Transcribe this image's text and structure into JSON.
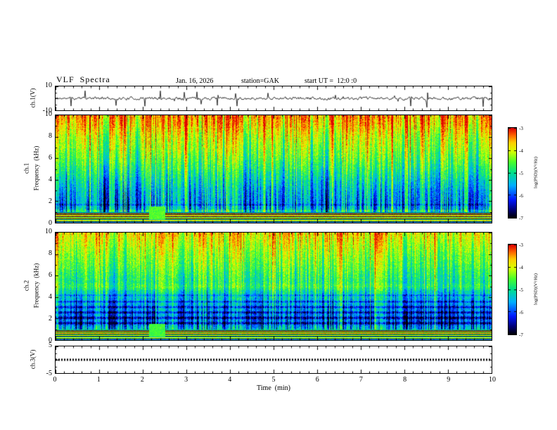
{
  "header": {
    "title": "VLF  Spectra",
    "date": "Jan. 16, 2026",
    "station": "station=GAK",
    "start_ut": "start UT =  12:0 :0"
  },
  "axes": {
    "x": {
      "label": "Time  (min)",
      "ticks": [
        "0",
        "1",
        "2",
        "3",
        "4",
        "5",
        "6",
        "7",
        "8",
        "9",
        "10"
      ],
      "lim": [
        0,
        10
      ]
    },
    "ch1_wave": {
      "label": "ch.1(V)",
      "ticks": [
        "10",
        "-10"
      ],
      "lim": [
        -10,
        10
      ]
    },
    "ch1_spec": {
      "channel": "ch.1",
      "label": "Frequency  (kHz)",
      "ticks": [
        "10",
        "8",
        "6",
        "4",
        "2",
        "0"
      ],
      "lim": [
        0,
        10
      ]
    },
    "ch2_spec": {
      "channel": "ch.2",
      "label": "Frequency  (kHz)",
      "ticks": [
        "10",
        "8",
        "6",
        "4",
        "2",
        "0"
      ],
      "lim": [
        0,
        10
      ]
    },
    "ch3_wave": {
      "label": "ch.3(V)",
      "ticks": [
        "5",
        "-5"
      ],
      "lim": [
        -5,
        5
      ]
    }
  },
  "colorbar": {
    "label": "log(PSD)(V²/Hz)",
    "ticks": [
      "-3",
      "-4",
      "-5",
      "-6",
      "-7"
    ],
    "value_range": [
      -7,
      -3
    ]
  },
  "colormap": [
    [
      0.0,
      "#000008"
    ],
    [
      0.08,
      "#000070"
    ],
    [
      0.2,
      "#0018ff"
    ],
    [
      0.36,
      "#00b0ff"
    ],
    [
      0.5,
      "#00e08c"
    ],
    [
      0.62,
      "#48ff2c"
    ],
    [
      0.74,
      "#d8ff00"
    ],
    [
      0.84,
      "#ffcc00"
    ],
    [
      0.92,
      "#ff6400"
    ],
    [
      1.0,
      "#dc0000"
    ]
  ],
  "chart_data": [
    {
      "type": "line",
      "name": "ch1_waveform",
      "ylabel": "ch.1(V)",
      "xlabel": "Time (min)",
      "ylim": [
        -10,
        10
      ],
      "xlim": [
        0,
        10
      ],
      "description": "dense zero-mean noise waveform with frequent narrow spikes",
      "synthesis": {
        "seed": 11,
        "noise_v": 2.0,
        "smooth": 0.5,
        "spike_prob": 0.04,
        "spike_v": 8,
        "yscale": 10
      }
    },
    {
      "type": "heatmap",
      "name": "ch1_spectrogram",
      "channel": "ch.1",
      "ylabel": "Frequency (kHz)",
      "xlabel": "Time (min)",
      "ylim": [
        0,
        10
      ],
      "xlim": [
        0,
        10
      ],
      "colorbar": {
        "label": "log(PSD)(V²/Hz)",
        "ticks": [
          -3,
          -4,
          -5,
          -6,
          -7
        ]
      },
      "description": "VLF spectrogram: red-orange above 8 kHz, green mid-band, dense dark-blue vertical sferic streaks below 6 kHz, bright hum harmonic bands below 1 kHz",
      "synthesis": {
        "seed": 22,
        "base_profile": [
          [
            10,
            -3.55
          ],
          [
            9,
            -3.8
          ],
          [
            8,
            -4.15
          ],
          [
            7,
            -4.35
          ],
          [
            6,
            -4.6
          ],
          [
            5,
            -4.9
          ],
          [
            4,
            -5.2
          ],
          [
            3,
            -5.45
          ],
          [
            2,
            -5.55
          ],
          [
            1.4,
            -5.4
          ],
          [
            1.0,
            -5.1
          ]
        ],
        "col_act_amp": 1.1,
        "streak_prob": 0.28,
        "streak_depth": 1.9,
        "bright_prob": 0.18,
        "bright_amp": 0.75,
        "pixel_noise": 0.38,
        "stripes": [
          {
            "f": 1.15,
            "w": 0.12,
            "dv": 0.5
          },
          {
            "f": 1.7,
            "w": 0.15,
            "dv": -0.5
          }
        ],
        "band_top_khz": 1.0,
        "bands": [
          -5.2,
          -6.8,
          -3.6,
          -6.9,
          -4.0,
          -3.6,
          -6.8,
          -4.4,
          -3.8,
          -6.9,
          -5.0,
          -3.7,
          -4.3,
          -6.8,
          -5.5
        ],
        "blob": {
          "t_min": 2.15,
          "t_max": 2.5,
          "f_min": 0.4,
          "f_max": 1.5,
          "value": -4.5
        }
      }
    },
    {
      "type": "heatmap",
      "name": "ch2_spectrogram",
      "channel": "ch.2",
      "ylabel": "Frequency (kHz)",
      "xlabel": "Time (min)",
      "ylim": [
        0,
        10
      ],
      "xlim": [
        0,
        10
      ],
      "colorbar": {
        "label": "log(PSD)(V²/Hz)",
        "ticks": [
          -3,
          -4,
          -5,
          -6,
          -7
        ]
      },
      "description": "VLF spectrogram: yellow-green top with red speckle, bluer mid-band, dark horizontal harmonic bands 1.5-4.5 kHz, vertical streaks, hum bands below 1 kHz",
      "synthesis": {
        "seed": 77,
        "base_profile": [
          [
            10,
            -3.85
          ],
          [
            9,
            -4.1
          ],
          [
            8,
            -4.35
          ],
          [
            7,
            -4.55
          ],
          [
            6,
            -4.8
          ],
          [
            5,
            -5.0
          ],
          [
            4,
            -5.35
          ],
          [
            3,
            -5.6
          ],
          [
            2,
            -5.75
          ],
          [
            1.4,
            -5.55
          ],
          [
            1.0,
            -5.2
          ]
        ],
        "col_act_amp": 1.0,
        "streak_prob": 0.3,
        "streak_depth": 1.7,
        "bright_prob": 0.13,
        "bright_amp": 0.7,
        "pixel_noise": 0.38,
        "stripes": [
          {
            "f": 1.6,
            "w": 0.18,
            "dv": -1.0
          },
          {
            "f": 2.1,
            "w": 0.18,
            "dv": -0.95
          },
          {
            "f": 2.6,
            "w": 0.16,
            "dv": -0.9
          },
          {
            "f": 3.1,
            "w": 0.16,
            "dv": -0.85
          },
          {
            "f": 3.6,
            "w": 0.14,
            "dv": -0.75
          },
          {
            "f": 4.2,
            "w": 0.12,
            "dv": -0.6
          },
          {
            "f": 5.0,
            "w": 0.45,
            "dv": 0.3
          }
        ],
        "band_top_khz": 1.0,
        "bands": [
          -5.0,
          -6.8,
          -3.8,
          -6.9,
          -4.2,
          -3.7,
          -6.8,
          -4.6,
          -4.0,
          -6.9,
          -5.2,
          -3.8,
          -4.5,
          -6.8,
          -5.6
        ],
        "blob": {
          "t_min": 2.15,
          "t_max": 2.5,
          "f_min": 0.4,
          "f_max": 1.5,
          "value": -4.6
        }
      }
    },
    {
      "type": "line",
      "name": "ch3_waveform",
      "ylabel": "ch.3(V)",
      "xlabel": "Time (min)",
      "ylim": [
        -5,
        5
      ],
      "xlim": [
        0,
        10
      ],
      "description": "flat thick dotted trace at 0 V",
      "synthesis": {
        "seed": 44,
        "value": 0,
        "line_width": 3,
        "dash": [
          2,
          2
        ],
        "yscale": 5
      }
    }
  ]
}
